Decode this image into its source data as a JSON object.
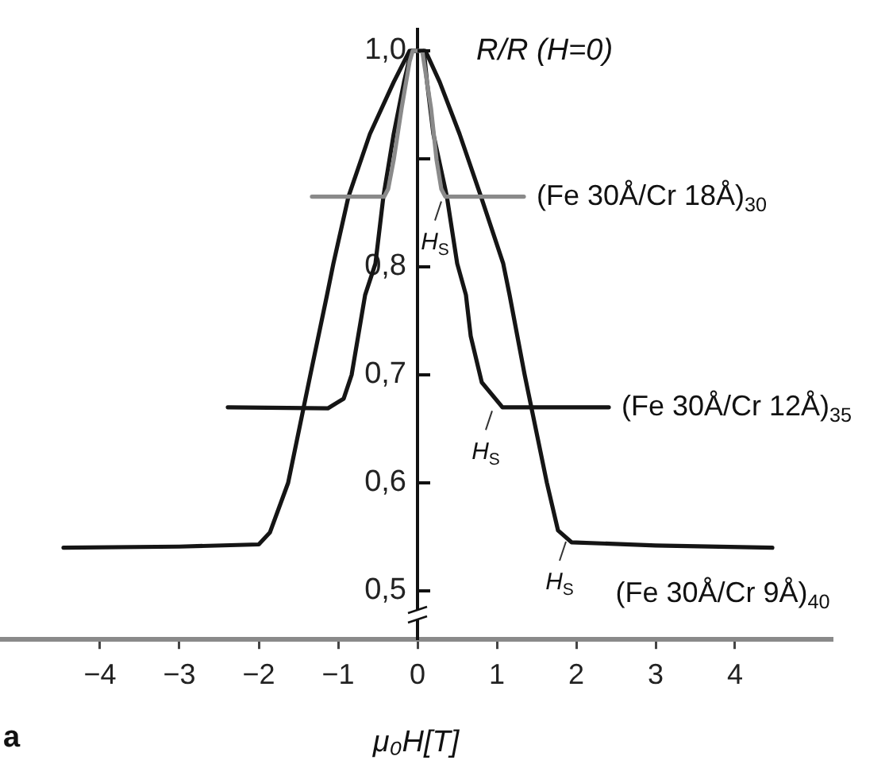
{
  "chart_data": {
    "type": "line",
    "xlabel": "μ₀H[T]",
    "ylabel": "R/R (H=0)",
    "xlim": [
      -5.26,
      5.22
    ],
    "ylim": [
      0.455,
      1.02
    ],
    "xticks": [
      -4,
      -3,
      -2,
      -1,
      0,
      1,
      2,
      3,
      4
    ],
    "yticks": [
      {
        "value": 0.5,
        "label": "0,5"
      },
      {
        "value": 0.6,
        "label": "0,6"
      },
      {
        "value": 0.7,
        "label": "0,7"
      },
      {
        "value": 0.8,
        "label": "0,8"
      },
      {
        "value": 0.9,
        "label": null
      },
      {
        "value": 1.0,
        "label": "1,0"
      }
    ],
    "legend": false,
    "series": [
      {
        "name": "(Fe 30Å/Cr 18Å)$_{30}$",
        "color": "#8a8a8a",
        "x": [
          -1.33,
          -0.42,
          -0.37,
          -0.3,
          -0.2,
          -0.1,
          -0.06,
          0.06,
          0.08,
          0.17,
          0.24,
          0.3,
          0.35,
          1.34
        ],
        "values": [
          0.865,
          0.865,
          0.872,
          0.899,
          0.947,
          0.99,
          1.0,
          1.0,
          0.99,
          0.947,
          0.899,
          0.872,
          0.865,
          0.865
        ]
      },
      {
        "name": "(Fe 30Å/Cr 12Å)$_{35}$",
        "color": "#151515",
        "x": [
          -2.39,
          -1.13,
          -0.93,
          -0.83,
          -0.66,
          -0.53,
          -0.43,
          -0.3,
          -0.17,
          -0.08,
          0.08,
          0.12,
          0.2,
          0.37,
          0.5,
          0.61,
          0.67,
          0.81,
          1.07,
          2.41
        ],
        "values": [
          0.67,
          0.669,
          0.678,
          0.7,
          0.774,
          0.803,
          0.865,
          0.923,
          0.971,
          1.0,
          1.0,
          0.971,
          0.923,
          0.865,
          0.803,
          0.774,
          0.736,
          0.693,
          0.67,
          0.67
        ]
      },
      {
        "name": "(Fe 30Å/Cr 9Å)$_{40}$",
        "color": "#151515",
        "x": [
          -4.46,
          -3.0,
          -2.0,
          -1.86,
          -1.63,
          -1.35,
          -1.14,
          -1.06,
          -0.87,
          -0.6,
          -0.3,
          -0.1,
          0.1,
          0.28,
          0.53,
          0.8,
          1.08,
          1.16,
          1.35,
          1.63,
          1.77,
          1.94,
          3.0,
          4.47
        ],
        "values": [
          0.54,
          0.541,
          0.543,
          0.554,
          0.6,
          0.7,
          0.774,
          0.803,
          0.865,
          0.923,
          0.971,
          1.0,
          1.0,
          0.971,
          0.923,
          0.865,
          0.803,
          0.774,
          0.7,
          0.6,
          0.556,
          0.545,
          0.542,
          0.54
        ]
      }
    ],
    "annotations": [
      {
        "text": "H$_{S}$",
        "x": 0.3,
        "y": 0.865
      },
      {
        "text": "H$_{S}$",
        "x": 0.94,
        "y": 0.671
      },
      {
        "text": "H$_{S}$",
        "x": 1.87,
        "y": 0.55
      },
      "a"
    ]
  }
}
